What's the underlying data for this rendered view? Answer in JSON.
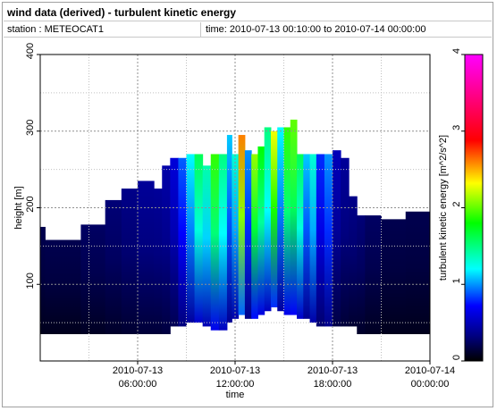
{
  "header": {
    "title": "wind data (derived) - turbulent kinetic energy",
    "station_label": "station : METEOCAT1",
    "time_label": "time: 2010-07-13 00:10:00 to 2010-07-14 00:00:00"
  },
  "chart_data": {
    "type": "heatmap",
    "title": "wind data (derived) - turbulent kinetic energy",
    "xlabel": "time",
    "ylabel": "height [m]",
    "colorbar_label": "turbulent kinetic energy [m^2/s^2]",
    "xlim": [
      0,
      24
    ],
    "ylim": [
      0,
      400
    ],
    "x_unit": "hours since 2010-07-13 00:00:00",
    "x_ticks": [
      {
        "at": 6,
        "line1": "2010-07-13",
        "line2": "06:00:00"
      },
      {
        "at": 12,
        "line1": "2010-07-13",
        "line2": "12:00:00"
      },
      {
        "at": 18,
        "line1": "2010-07-13",
        "line2": "18:00:00"
      },
      {
        "at": 24,
        "line1": "2010-07-14",
        "line2": "00:00:00"
      }
    ],
    "y_ticks": [
      100,
      200,
      300,
      400
    ],
    "colorbar_ticks": [
      0,
      1,
      2,
      3,
      4
    ],
    "color_range": [
      0,
      4
    ],
    "grid": true,
    "columns": [
      {
        "t0": 0.0,
        "t1": 0.3,
        "bottom": 35,
        "top": 175,
        "tke": 0.2
      },
      {
        "t0": 0.3,
        "t1": 2.5,
        "bottom": 35,
        "top": 158,
        "tke": 0.2
      },
      {
        "t0": 2.5,
        "t1": 4.0,
        "bottom": 35,
        "top": 178,
        "tke": 0.25
      },
      {
        "t0": 4.0,
        "t1": 5.0,
        "bottom": 35,
        "top": 210,
        "tke": 0.3
      },
      {
        "t0": 5.0,
        "t1": 6.0,
        "bottom": 35,
        "top": 225,
        "tke": 0.35
      },
      {
        "t0": 6.0,
        "t1": 7.0,
        "bottom": 35,
        "top": 235,
        "tke": 0.4
      },
      {
        "t0": 7.0,
        "t1": 7.5,
        "bottom": 35,
        "top": 225,
        "tke": 0.4
      },
      {
        "t0": 7.5,
        "t1": 8.0,
        "bottom": 35,
        "top": 255,
        "tke": 0.45
      },
      {
        "t0": 8.0,
        "t1": 8.5,
        "bottom": 45,
        "top": 265,
        "tke": 0.6
      },
      {
        "t0": 8.5,
        "t1": 9.0,
        "bottom": 45,
        "top": 265,
        "tke": 0.9
      },
      {
        "t0": 9.0,
        "t1": 9.5,
        "bottom": 50,
        "top": 270,
        "tke": 1.2
      },
      {
        "t0": 9.5,
        "t1": 10.0,
        "bottom": 50,
        "top": 270,
        "tke": 1.6
      },
      {
        "t0": 10.0,
        "t1": 10.5,
        "bottom": 45,
        "top": 255,
        "tke": 1.4
      },
      {
        "t0": 10.5,
        "t1": 11.0,
        "bottom": 40,
        "top": 270,
        "tke": 1.9
      },
      {
        "t0": 11.0,
        "t1": 11.5,
        "bottom": 40,
        "top": 270,
        "tke": 1.5
      },
      {
        "t0": 11.5,
        "t1": 11.8,
        "bottom": 50,
        "top": 295,
        "tke": 1.1
      },
      {
        "t0": 11.8,
        "t1": 12.2,
        "bottom": 55,
        "top": 270,
        "tke": 1.3
      },
      {
        "t0": 12.2,
        "t1": 12.6,
        "bottom": 60,
        "top": 295,
        "tke": 2.6
      },
      {
        "t0": 12.6,
        "t1": 13.0,
        "bottom": 55,
        "top": 275,
        "tke": 1.0
      },
      {
        "t0": 13.0,
        "t1": 13.4,
        "bottom": 55,
        "top": 270,
        "tke": 2.1
      },
      {
        "t0": 13.4,
        "t1": 13.8,
        "bottom": 60,
        "top": 280,
        "tke": 1.8
      },
      {
        "t0": 13.8,
        "t1": 14.2,
        "bottom": 65,
        "top": 305,
        "tke": 1.5
      },
      {
        "t0": 14.2,
        "t1": 14.6,
        "bottom": 70,
        "top": 300,
        "tke": 2.3
      },
      {
        "t0": 14.6,
        "t1": 15.0,
        "bottom": 65,
        "top": 305,
        "tke": 1.2
      },
      {
        "t0": 15.0,
        "t1": 15.4,
        "bottom": 60,
        "top": 305,
        "tke": 1.9
      },
      {
        "t0": 15.4,
        "t1": 15.8,
        "bottom": 60,
        "top": 315,
        "tke": 2.0
      },
      {
        "t0": 15.8,
        "t1": 16.2,
        "bottom": 55,
        "top": 270,
        "tke": 1.6
      },
      {
        "t0": 16.2,
        "t1": 16.6,
        "bottom": 55,
        "top": 270,
        "tke": 1.1
      },
      {
        "t0": 16.6,
        "t1": 17.0,
        "bottom": 50,
        "top": 270,
        "tke": 1.3
      },
      {
        "t0": 17.0,
        "t1": 17.5,
        "bottom": 45,
        "top": 270,
        "tke": 0.8
      },
      {
        "t0": 17.5,
        "t1": 18.0,
        "bottom": 45,
        "top": 270,
        "tke": 1.0
      },
      {
        "t0": 18.0,
        "t1": 18.5,
        "bottom": 45,
        "top": 275,
        "tke": 0.5
      },
      {
        "t0": 18.5,
        "t1": 19.0,
        "bottom": 45,
        "top": 265,
        "tke": 0.4
      },
      {
        "t0": 19.0,
        "t1": 19.5,
        "bottom": 45,
        "top": 215,
        "tke": 0.35
      },
      {
        "t0": 19.5,
        "t1": 20.0,
        "bottom": 35,
        "top": 190,
        "tke": 0.3
      },
      {
        "t0": 20.0,
        "t1": 21.0,
        "bottom": 35,
        "top": 190,
        "tke": 0.25
      },
      {
        "t0": 21.0,
        "t1": 22.5,
        "bottom": 35,
        "top": 185,
        "tke": 0.2
      },
      {
        "t0": 22.5,
        "t1": 24.0,
        "bottom": 35,
        "top": 195,
        "tke": 0.2
      }
    ]
  }
}
